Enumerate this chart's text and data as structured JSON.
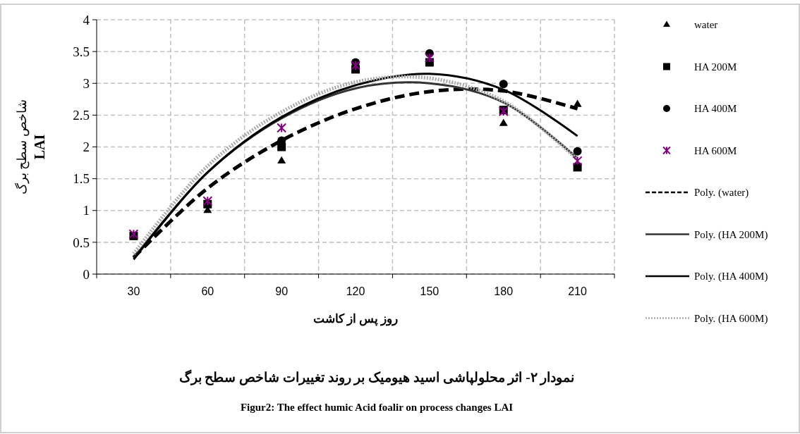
{
  "chart_data": {
    "type": "scatter",
    "title": "نمودار ۲- اثر محلولپاشی اسید هیومیک بر روند تغییرات شاخص سطح برگ",
    "subtitle": "Figur2: The effect humic Acid foalir on process changes LAI",
    "xlabel": "روز پس از کاشت",
    "ylabel": "شاخص سطح برگ\nLAI",
    "categories": [
      "30",
      "60",
      "90",
      "120",
      "150",
      "180",
      "210"
    ],
    "ylim": [
      0,
      4
    ],
    "yticks": [
      0,
      0.5,
      1,
      1.5,
      2,
      2.5,
      3,
      3.5,
      4
    ],
    "grid": true,
    "legend": "right",
    "series": [
      {
        "name": "water",
        "marker": "triangle",
        "color": "#000000",
        "values": [
          null,
          1.0,
          1.78,
          null,
          null,
          2.37,
          2.67
        ]
      },
      {
        "name": "HA 200M",
        "marker": "square",
        "color": "#000000",
        "values": [
          0.6,
          1.1,
          2.0,
          3.22,
          3.33,
          2.58,
          1.68
        ]
      },
      {
        "name": "HA 400M",
        "marker": "circle",
        "color": "#000000",
        "values": [
          null,
          null,
          2.1,
          3.33,
          3.47,
          2.99,
          1.93
        ]
      },
      {
        "name": "HA 600M",
        "marker": "cross",
        "color": "#800080",
        "values": [
          0.63,
          1.15,
          2.3,
          3.28,
          3.4,
          2.56,
          1.78
        ]
      },
      {
        "name": "Poly. (water)",
        "type": "line",
        "line_style": "dashed",
        "color": "#000000",
        "values": [
          0.26,
          1.35,
          2.1,
          2.6,
          2.87,
          2.88,
          2.6
        ]
      },
      {
        "name": "Poly. (HA 200M)",
        "type": "line",
        "line_style": "solid",
        "color": "#333333",
        "values": [
          0.25,
          1.6,
          2.45,
          2.92,
          3.0,
          2.7,
          1.82
        ]
      },
      {
        "name": "Poly. (HA 400M)",
        "type": "line",
        "line_style": "solid",
        "color": "#000000",
        "values": [
          0.23,
          1.6,
          2.47,
          2.97,
          3.15,
          2.9,
          2.17
        ]
      },
      {
        "name": "Poly. (HA 600M)",
        "type": "line",
        "line_style": "dotted",
        "color": "#aaaaaa",
        "values": [
          0.32,
          1.7,
          2.55,
          3.02,
          3.08,
          2.72,
          1.8
        ]
      }
    ]
  }
}
